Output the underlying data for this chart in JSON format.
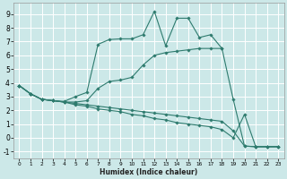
{
  "xlabel": "Humidex (Indice chaleur)",
  "bg_color": "#cce8e8",
  "grid_color": "#ffffff",
  "line_color": "#2e7b6e",
  "xlim": [
    -0.5,
    23.5
  ],
  "ylim": [
    -1.5,
    9.8
  ],
  "xticks": [
    0,
    1,
    2,
    3,
    4,
    5,
    6,
    7,
    8,
    9,
    10,
    11,
    12,
    13,
    14,
    15,
    16,
    17,
    18,
    19,
    20,
    21,
    22,
    23
  ],
  "yticks": [
    -1,
    0,
    1,
    2,
    3,
    4,
    5,
    6,
    7,
    8,
    9
  ],
  "lines": [
    {
      "x": [
        0,
        1,
        2,
        3,
        4,
        5,
        6,
        7,
        8,
        9,
        10,
        11,
        12,
        13,
        14,
        15,
        16,
        17,
        18
      ],
      "y": [
        3.8,
        3.2,
        2.8,
        2.7,
        2.65,
        3.0,
        3.3,
        6.8,
        7.15,
        7.2,
        7.2,
        7.5,
        9.2,
        6.7,
        8.7,
        8.7,
        7.3,
        7.5,
        6.5
      ]
    },
    {
      "x": [
        0,
        1,
        2,
        3,
        4,
        5,
        6,
        7,
        8,
        9,
        10,
        11,
        12,
        13,
        14,
        15,
        16,
        17,
        18,
        19,
        20,
        21,
        22,
        23
      ],
      "y": [
        3.8,
        3.2,
        2.8,
        2.7,
        2.6,
        2.6,
        2.7,
        3.6,
        4.1,
        4.2,
        4.4,
        5.3,
        6.0,
        6.2,
        6.3,
        6.4,
        6.5,
        6.5,
        6.5,
        2.8,
        -0.6,
        -0.65,
        -0.65,
        -0.65
      ]
    },
    {
      "x": [
        0,
        1,
        2,
        3,
        4,
        5,
        6,
        7,
        8,
        9,
        10,
        11,
        12,
        13,
        14,
        15,
        16,
        17,
        18,
        19,
        20,
        21,
        22,
        23
      ],
      "y": [
        3.8,
        3.2,
        2.8,
        2.7,
        2.6,
        2.5,
        2.4,
        2.3,
        2.2,
        2.1,
        2.0,
        1.9,
        1.8,
        1.7,
        1.6,
        1.5,
        1.4,
        1.3,
        1.2,
        0.5,
        -0.6,
        -0.65,
        -0.65,
        -0.65
      ]
    },
    {
      "x": [
        0,
        1,
        2,
        3,
        4,
        5,
        6,
        7,
        8,
        9,
        10,
        11,
        12,
        13,
        14,
        15,
        16,
        17,
        18,
        19,
        20,
        21,
        22,
        23
      ],
      "y": [
        3.8,
        3.2,
        2.8,
        2.7,
        2.6,
        2.4,
        2.3,
        2.1,
        2.0,
        1.9,
        1.7,
        1.6,
        1.4,
        1.3,
        1.1,
        1.0,
        0.9,
        0.8,
        0.6,
        0.0,
        1.7,
        -0.65,
        -0.65,
        -0.65
      ]
    }
  ]
}
